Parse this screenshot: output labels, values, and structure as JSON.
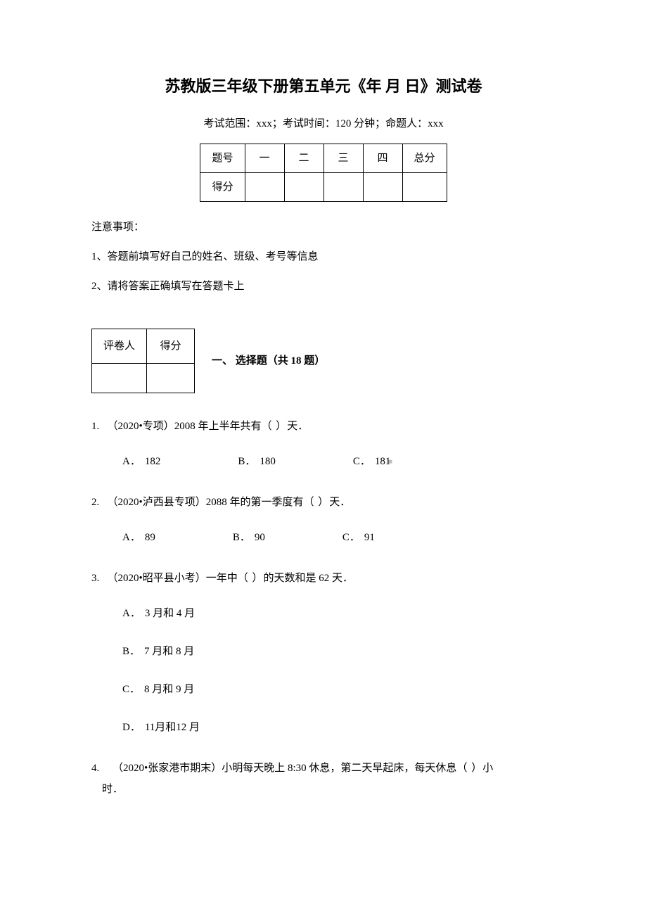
{
  "title": "苏教版三年级下册第五单元《年 月 日》测试卷",
  "subtitle": "考试范围：xxx；考试时间：120 分钟；命题人：xxx",
  "score_table": {
    "headers": [
      "题号",
      "一",
      "二",
      "三",
      "四",
      "总分"
    ],
    "row_label": "得分"
  },
  "notice": {
    "header": "注意事项：",
    "items": [
      "1、答题前填写好自己的姓名、班级、考号等信息",
      "2、请将答案正确填写在答题卡上"
    ]
  },
  "grader_table": {
    "c1": "评卷人",
    "c2": "得分"
  },
  "section_title": "一、 选择题（共 18 题）",
  "questions": [
    {
      "num": "1.",
      "prefix": "（2020•专项）",
      "text_a": "2008 年上半年共有",
      "text_b": "天．",
      "options": [
        {
          "label": "A．",
          "value": "182"
        },
        {
          "label": "B．",
          "value": "180"
        },
        {
          "label": "C．",
          "value": "181"
        }
      ],
      "layout": "inline"
    },
    {
      "num": "2.",
      "prefix": "（2020•泸西县专项）",
      "text_a": "2088 年的第一季度有",
      "text_b": "天．",
      "options": [
        {
          "label": "A．",
          "value": "89"
        },
        {
          "label": "B．",
          "value": "90"
        },
        {
          "label": "C．",
          "value": "91"
        }
      ],
      "layout": "inline"
    },
    {
      "num": "3.",
      "prefix": "（2020•昭平县小考）一年中",
      "text_a": "",
      "text_b": "的天数和是 62 天．",
      "options": [
        {
          "label": "A．",
          "value": "3 月和 4 月"
        },
        {
          "label": "B．",
          "value": "7 月和 8 月"
        },
        {
          "label": "C．",
          "value": "8 月和 9 月"
        },
        {
          "label": "D．",
          "value": "11月和12 月"
        }
      ],
      "layout": "block"
    },
    {
      "num": "4.",
      "prefix": "（2020•张家港市期末）小明每天晚上 8:30 休息，第二天早起床，每天休息",
      "text_a": "",
      "text_b": "小",
      "text_c": "时．",
      "options": [],
      "layout": "none"
    }
  ],
  "paren": "（  ）",
  "watermark": "■"
}
